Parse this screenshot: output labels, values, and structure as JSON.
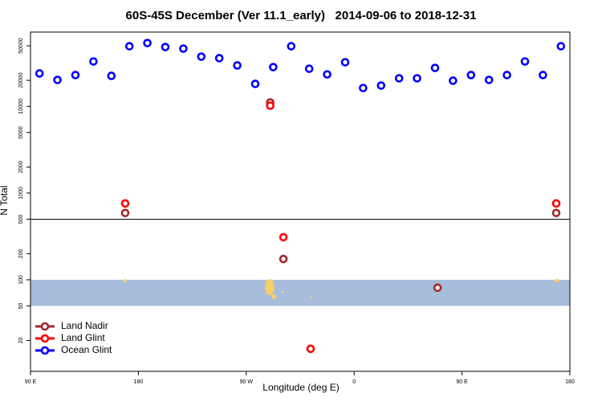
{
  "chart_data": {
    "type": "scatter",
    "title": "60S-45S December (Ver 11.1_early)   2014-09-06 to 2018-12-31",
    "xlabel": "Longitude (deg E)",
    "ylabel": "N Total",
    "xlim": [
      90,
      540
    ],
    "xticks": [
      {
        "value": 90,
        "label": "90 E"
      },
      180,
      {
        "value": 270,
        "label": "90 W"
      },
      {
        "value": 360,
        "label": "0"
      },
      {
        "value": 450,
        "label": "90 E"
      },
      {
        "value": 540,
        "label": "180"
      }
    ],
    "ylim": [
      8.8,
      72000
    ],
    "yscale": "log",
    "yticks": [
      20,
      50,
      100,
      200,
      500,
      1000,
      2000,
      5000,
      10000,
      20000,
      50000
    ],
    "hline": 500,
    "band": [
      50,
      100
    ],
    "band_color": "#a8bcdc",
    "legend": "lower left",
    "series": [
      {
        "name": "Land Nadir",
        "color": "#a52a2a",
        "x": [
          169,
          290,
          301,
          429.6,
          528.6
        ],
        "values": [
          590,
          11100,
          174,
          81,
          590
        ]
      },
      {
        "name": "Land Glint",
        "color": "#ff0000",
        "x": [
          169,
          290,
          301,
          323.7,
          528.6
        ],
        "values": [
          760,
          10200,
          310,
          16,
          760
        ]
      },
      {
        "name": "Ocean Glint",
        "color": "#0000ff",
        "x": [
          97.5,
          112.5,
          127.5,
          142.5,
          157.5,
          172.5,
          187.5,
          202.5,
          217.5,
          232.5,
          247.5,
          262.5,
          277.5,
          292.5,
          307.5,
          322.5,
          337.5,
          352.5,
          367.5,
          382.5,
          397.5,
          412.5,
          427.5,
          442.5,
          457.5,
          472.5,
          487.5,
          502.5,
          517.5,
          532.5
        ],
        "values": [
          24000,
          20200,
          23000,
          33000,
          22500,
          49400,
          53800,
          48400,
          46400,
          37500,
          36000,
          29700,
          18200,
          28400,
          49400,
          27200,
          23400,
          32300,
          16300,
          17400,
          21100,
          21100,
          27800,
          19800,
          23000,
          20200,
          23000,
          33000,
          23000,
          49400
        ]
      }
    ]
  }
}
